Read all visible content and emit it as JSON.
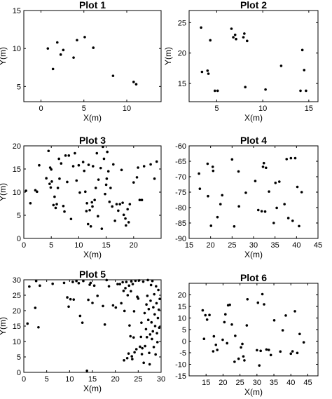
{
  "chart_data": [
    {
      "type": "scatter",
      "title": "Plot 1",
      "xlabel": "X(m)",
      "ylabel": "Y(m)",
      "xlim": [
        -2,
        14
      ],
      "ylim": [
        3,
        15
      ],
      "xticks": [
        0,
        5,
        10
      ],
      "yticks": [
        5,
        10,
        15
      ],
      "grid": false,
      "points": [
        [
          0.8,
          10.0
        ],
        [
          1.4,
          7.3
        ],
        [
          1.9,
          10.8
        ],
        [
          2.3,
          9.2
        ],
        [
          2.6,
          9.8
        ],
        [
          3.8,
          8.8
        ],
        [
          4.2,
          11.1
        ],
        [
          5.1,
          11.5
        ],
        [
          6.1,
          10.1
        ],
        [
          8.4,
          6.4
        ],
        [
          10.8,
          5.6
        ],
        [
          11.1,
          5.3
        ]
      ]
    },
    {
      "type": "scatter",
      "title": "Plot 2",
      "xlabel": "X(m)",
      "ylabel": "Y(m)",
      "xlim": [
        2,
        16
      ],
      "ylim": [
        12,
        27
      ],
      "xticks": [
        5,
        10,
        15
      ],
      "yticks": [
        15,
        20,
        25
      ],
      "grid": false,
      "points": [
        [
          3.3,
          24.2
        ],
        [
          3.4,
          16.9
        ],
        [
          4.0,
          17.1
        ],
        [
          4.1,
          16.6
        ],
        [
          4.3,
          22.1
        ],
        [
          4.8,
          13.8
        ],
        [
          5.1,
          13.8
        ],
        [
          6.6,
          24.0
        ],
        [
          6.8,
          22.6
        ],
        [
          7.0,
          23.0
        ],
        [
          7.1,
          22.3
        ],
        [
          7.9,
          22.6
        ],
        [
          8.0,
          23.2
        ],
        [
          8.1,
          14.4
        ],
        [
          8.3,
          22.0
        ],
        [
          10.3,
          14.0
        ],
        [
          12.0,
          17.9
        ],
        [
          14.1,
          13.8
        ],
        [
          14.3,
          20.5
        ],
        [
          14.5,
          17.2
        ],
        [
          14.7,
          13.8
        ]
      ]
    },
    {
      "type": "scatter",
      "title": "Plot 3",
      "xlabel": "X(m)",
      "ylabel": "Y(m)",
      "xlim": [
        0,
        25
      ],
      "ylim": [
        0,
        20
      ],
      "xticks": [
        0,
        5,
        10,
        15,
        20
      ],
      "yticks": [
        0,
        5,
        10,
        15,
        20
      ],
      "grid": false,
      "points": [
        [
          0.4,
          10.3
        ],
        [
          1.2,
          7.6
        ],
        [
          2.1,
          10.4
        ],
        [
          2.4,
          10.1
        ],
        [
          2.8,
          15.8
        ],
        [
          4.1,
          13.0
        ],
        [
          4.5,
          18.9
        ],
        [
          4.7,
          11.8
        ],
        [
          4.8,
          15.3
        ],
        [
          4.9,
          11.0
        ],
        [
          5.0,
          14.9
        ],
        [
          5.1,
          12.3
        ],
        [
          5.4,
          7.2
        ],
        [
          5.6,
          9.0
        ],
        [
          5.8,
          6.6
        ],
        [
          6.0,
          7.4
        ],
        [
          6.2,
          10.9
        ],
        [
          6.4,
          17.2
        ],
        [
          6.5,
          12.9
        ],
        [
          6.8,
          16.2
        ],
        [
          7.2,
          7.0
        ],
        [
          7.4,
          5.8
        ],
        [
          7.6,
          17.9
        ],
        [
          7.9,
          12.2
        ],
        [
          8.2,
          17.9
        ],
        [
          8.6,
          4.2
        ],
        [
          9.0,
          15.6
        ],
        [
          9.3,
          18.4
        ],
        [
          9.6,
          12.5
        ],
        [
          10.0,
          15.8
        ],
        [
          10.2,
          9.9
        ],
        [
          10.8,
          16.5
        ],
        [
          11.0,
          14.6
        ],
        [
          11.2,
          10.1
        ],
        [
          11.4,
          5.9
        ],
        [
          11.5,
          7.6
        ],
        [
          11.7,
          3.1
        ],
        [
          11.8,
          15.9
        ],
        [
          12.0,
          6.1
        ],
        [
          12.2,
          2.6
        ],
        [
          12.4,
          7.8
        ],
        [
          12.5,
          6.9
        ],
        [
          12.6,
          15.6
        ],
        [
          12.9,
          8.3
        ],
        [
          13.1,
          10.9
        ],
        [
          13.3,
          18.4
        ],
        [
          13.5,
          4.8
        ],
        [
          13.6,
          12.7
        ],
        [
          14.0,
          15.2
        ],
        [
          14.2,
          2.1
        ],
        [
          14.4,
          19.8
        ],
        [
          14.6,
          17.2
        ],
        [
          14.8,
          9.6
        ],
        [
          15.0,
          11.6
        ],
        [
          15.1,
          12.9
        ],
        [
          15.2,
          18.7
        ],
        [
          15.4,
          14.5
        ],
        [
          15.6,
          7.9
        ],
        [
          15.8,
          10.9
        ],
        [
          16.1,
          6.9
        ],
        [
          16.3,
          16.0
        ],
        [
          16.6,
          3.8
        ],
        [
          16.9,
          7.4
        ],
        [
          17.2,
          6.0
        ],
        [
          17.5,
          7.4
        ],
        [
          17.8,
          14.8
        ],
        [
          18.0,
          7.7
        ],
        [
          18.2,
          5.1
        ],
        [
          18.5,
          4.3
        ],
        [
          18.6,
          2.8
        ],
        [
          18.9,
          6.3
        ],
        [
          19.1,
          3.5
        ],
        [
          19.3,
          7.4
        ],
        [
          20.0,
          12.1
        ],
        [
          20.6,
          13.2
        ],
        [
          20.8,
          15.3
        ],
        [
          21.1,
          8.3
        ],
        [
          21.5,
          8.3
        ],
        [
          21.9,
          15.6
        ],
        [
          23.1,
          16.0
        ],
        [
          23.8,
          12.9
        ],
        [
          24.2,
          16.6
        ]
      ]
    },
    {
      "type": "scatter",
      "title": "Plot 4",
      "xlabel": "X(m)",
      "ylabel": "",
      "xlim": [
        15,
        45
      ],
      "ylim": [
        -90,
        -60
      ],
      "xticks": [
        15,
        20,
        25,
        30,
        35,
        40,
        45
      ],
      "yticks": [
        -90,
        -85,
        -80,
        -75,
        -70,
        -65,
        -60
      ],
      "grid": false,
      "points": [
        [
          17.3,
          -69.0
        ],
        [
          17.5,
          -73.9
        ],
        [
          19.3,
          -65.8
        ],
        [
          19.4,
          -76.3
        ],
        [
          20.1,
          -85.9
        ],
        [
          20.5,
          -66.8
        ],
        [
          20.6,
          -68.1
        ],
        [
          21.6,
          -83.1
        ],
        [
          22.3,
          -78.9
        ],
        [
          22.7,
          -76.0
        ],
        [
          25.0,
          -64.4
        ],
        [
          25.5,
          -86.1
        ],
        [
          26.5,
          -68.3
        ],
        [
          26.6,
          -79.6
        ],
        [
          28.2,
          -75.2
        ],
        [
          30.4,
          -71.4
        ],
        [
          31.1,
          -80.8
        ],
        [
          31.9,
          -81.2
        ],
        [
          32.2,
          -66.8
        ],
        [
          32.4,
          -65.6
        ],
        [
          32.7,
          -81.3
        ],
        [
          32.9,
          -67.1
        ],
        [
          33.6,
          -74.8
        ],
        [
          34.7,
          -85.0
        ],
        [
          35.1,
          -72.0
        ],
        [
          35.4,
          -80.1
        ],
        [
          36.0,
          -71.6
        ],
        [
          37.2,
          -78.9
        ],
        [
          37.7,
          -64.3
        ],
        [
          38.1,
          -83.4
        ],
        [
          38.7,
          -64.0
        ],
        [
          39.1,
          -84.3
        ],
        [
          39.7,
          -64.0
        ],
        [
          40.2,
          -73.3
        ],
        [
          40.6,
          -86.0
        ],
        [
          41.2,
          -75.0
        ]
      ]
    },
    {
      "type": "scatter",
      "title": "Plot 5",
      "xlabel": "X(m)",
      "ylabel": "Y(m)",
      "xlim": [
        0,
        30
      ],
      "ylim": [
        0,
        30
      ],
      "xticks": [
        0,
        5,
        10,
        15,
        20,
        25,
        30
      ],
      "yticks": [
        0,
        5,
        10,
        15,
        20,
        25,
        30
      ],
      "grid": false,
      "points": [
        [
          0.8,
          15.8
        ],
        [
          1.2,
          27.8
        ],
        [
          2.5,
          20.9
        ],
        [
          2.7,
          29.6
        ],
        [
          3.2,
          14.6
        ],
        [
          3.5,
          28.1
        ],
        [
          6.3,
          28.7
        ],
        [
          8.8,
          29.0
        ],
        [
          9.5,
          24.3
        ],
        [
          9.8,
          21.3
        ],
        [
          10.2,
          23.7
        ],
        [
          10.7,
          29.3
        ],
        [
          10.9,
          23.6
        ],
        [
          11.5,
          29.6
        ],
        [
          12.0,
          28.9
        ],
        [
          12.3,
          18.3
        ],
        [
          12.8,
          16.1
        ],
        [
          13.0,
          29.6
        ],
        [
          13.8,
          0.5
        ],
        [
          14.1,
          23.5
        ],
        [
          14.4,
          28.4
        ],
        [
          14.6,
          29.0
        ],
        [
          15.0,
          22.5
        ],
        [
          15.4,
          28.1
        ],
        [
          16.1,
          24.8
        ],
        [
          17.3,
          21.5
        ],
        [
          17.7,
          15.5
        ],
        [
          18.1,
          29.9
        ],
        [
          18.6,
          27.9
        ],
        [
          19.5,
          21.7
        ],
        [
          20.1,
          21.0
        ],
        [
          20.5,
          28.6
        ],
        [
          21.0,
          28.6
        ],
        [
          21.3,
          22.4
        ],
        [
          21.6,
          29.2
        ],
        [
          21.8,
          26.4
        ],
        [
          21.9,
          3.9
        ],
        [
          22.0,
          19.9
        ],
        [
          22.2,
          27.3
        ],
        [
          22.4,
          29.3
        ],
        [
          22.6,
          4.6
        ],
        [
          22.7,
          25.0
        ],
        [
          22.9,
          6.1
        ],
        [
          23.0,
          28.1
        ],
        [
          23.1,
          15.2
        ],
        [
          23.3,
          11.7
        ],
        [
          23.4,
          26.3
        ],
        [
          23.5,
          29.5
        ],
        [
          23.6,
          5.2
        ],
        [
          23.7,
          4.3
        ],
        [
          23.8,
          28.6
        ],
        [
          24.0,
          11.3
        ],
        [
          24.1,
          19.8
        ],
        [
          24.2,
          6.5
        ],
        [
          24.4,
          29.7
        ],
        [
          24.6,
          7.5
        ],
        [
          24.8,
          24.5
        ],
        [
          25.0,
          23.9
        ],
        [
          25.2,
          29.8
        ],
        [
          25.4,
          8.3
        ],
        [
          25.6,
          11.5
        ],
        [
          25.7,
          16.1
        ],
        [
          25.8,
          5.9
        ],
        [
          25.9,
          7.8
        ],
        [
          26.1,
          29.4
        ],
        [
          26.2,
          3.1
        ],
        [
          26.4,
          19.2
        ],
        [
          26.5,
          8.5
        ],
        [
          26.7,
          14.0
        ],
        [
          26.8,
          22.0
        ],
        [
          26.9,
          11.4
        ],
        [
          27.0,
          24.8
        ],
        [
          27.1,
          29.9
        ],
        [
          27.2,
          17.0
        ],
        [
          27.3,
          20.5
        ],
        [
          27.4,
          6.3
        ],
        [
          27.5,
          2.6
        ],
        [
          27.6,
          12.3
        ],
        [
          27.7,
          23.2
        ],
        [
          27.8,
          28.3
        ],
        [
          27.9,
          16.2
        ],
        [
          28.0,
          10.8
        ],
        [
          28.1,
          29.6
        ],
        [
          28.2,
          13.3
        ],
        [
          28.3,
          21.1
        ],
        [
          28.4,
          8.2
        ],
        [
          28.5,
          25.3
        ],
        [
          28.6,
          18.8
        ],
        [
          28.7,
          15.0
        ],
        [
          28.8,
          5.8
        ],
        [
          28.9,
          27.9
        ],
        [
          29.0,
          22.4
        ],
        [
          29.1,
          12.7
        ],
        [
          29.2,
          9.8
        ],
        [
          29.3,
          17.6
        ],
        [
          29.4,
          26.7
        ],
        [
          29.5,
          20.3
        ],
        [
          29.6,
          14.5
        ],
        [
          29.7,
          23.8
        ]
      ]
    },
    {
      "type": "scatter",
      "title": "Plot 6",
      "xlabel": "X(m)",
      "ylabel": "",
      "xlim": [
        10,
        48
      ],
      "ylim": [
        -15,
        25
      ],
      "xticks": [
        15,
        20,
        25,
        30,
        35,
        40,
        45
      ],
      "yticks": [
        -15,
        -10,
        -5,
        0,
        5,
        10,
        15,
        20
      ],
      "grid": false,
      "points": [
        [
          14.0,
          13.3
        ],
        [
          14.4,
          1.0
        ],
        [
          14.8,
          11.2
        ],
        [
          15.3,
          9.3
        ],
        [
          16.0,
          11.3
        ],
        [
          17.1,
          -4.4
        ],
        [
          17.3,
          2.1
        ],
        [
          17.9,
          -1.6
        ],
        [
          18.3,
          -3.8
        ],
        [
          19.9,
          0.6
        ],
        [
          20.4,
          8.2
        ],
        [
          20.7,
          11.6
        ],
        [
          21.2,
          -0.9
        ],
        [
          21.5,
          15.5
        ],
        [
          22.0,
          15.7
        ],
        [
          22.6,
          7.2
        ],
        [
          23.4,
          -8.9
        ],
        [
          23.6,
          2.3
        ],
        [
          24.6,
          -7.6
        ],
        [
          25.3,
          -2.7
        ],
        [
          25.7,
          -1.2
        ],
        [
          26.0,
          -6.6
        ],
        [
          26.3,
          -8.3
        ],
        [
          27.0,
          6.8
        ],
        [
          27.2,
          18.1
        ],
        [
          30.0,
          -3.9
        ],
        [
          30.3,
          16.6
        ],
        [
          30.7,
          -10.5
        ],
        [
          31.1,
          -4.2
        ],
        [
          31.6,
          20.3
        ],
        [
          32.1,
          15.9
        ],
        [
          32.8,
          -3.6
        ],
        [
          33.5,
          -3.8
        ],
        [
          34.1,
          -6.0
        ],
        [
          35.1,
          9.0
        ],
        [
          36.9,
          -4.5
        ],
        [
          37.6,
          4.7
        ],
        [
          38.5,
          11.1
        ],
        [
          40.0,
          -5.4
        ],
        [
          40.5,
          -4.4
        ],
        [
          41.2,
          12.9
        ],
        [
          41.9,
          -5.1
        ],
        [
          42.6,
          3.1
        ],
        [
          43.8,
          -0.5
        ]
      ]
    }
  ]
}
